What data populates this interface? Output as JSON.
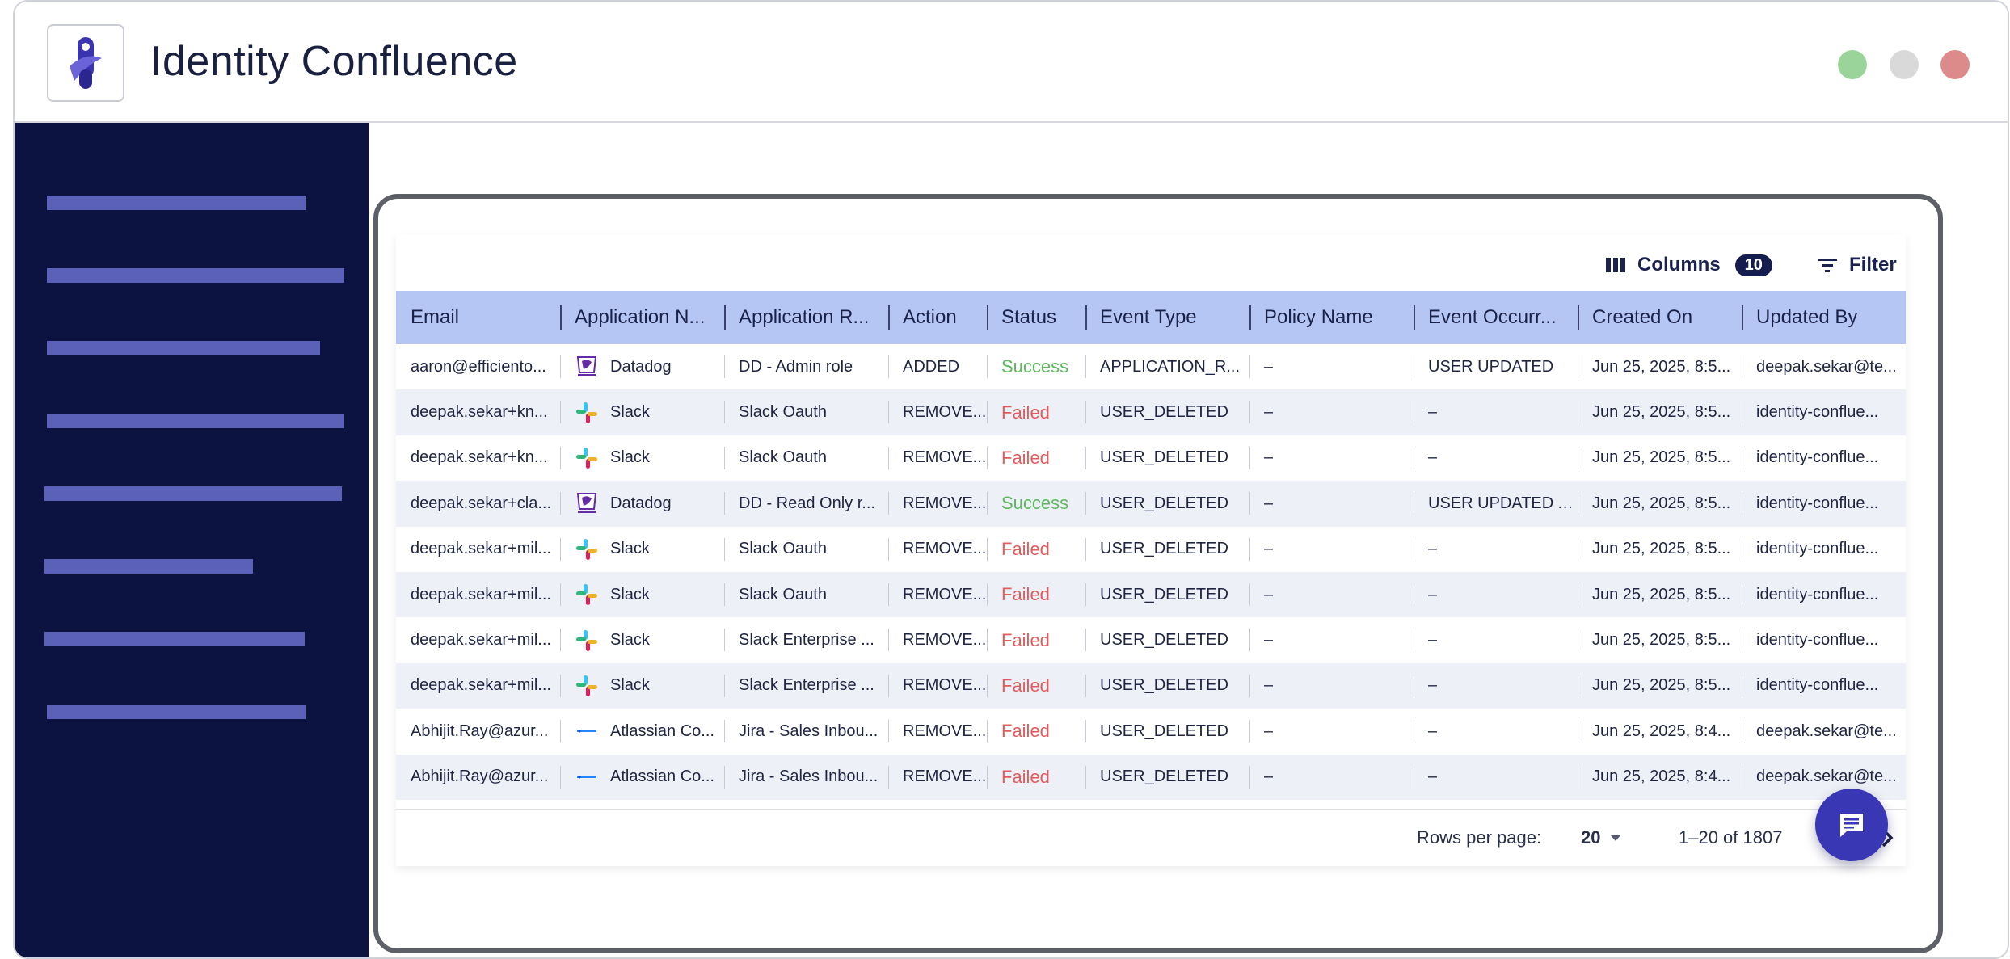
{
  "app": {
    "title": "Identity Confluence"
  },
  "window_controls": [
    "maximize",
    "minimize",
    "close"
  ],
  "colors": {
    "sidebar_bg": "#0d1340",
    "nav_placeholder": "#5b60b8",
    "header_row": "#b5c6f5",
    "success": "#5cb85c",
    "failed": "#e25c5c",
    "fab": "#3a37b5"
  },
  "toolbar": {
    "columns_label": "Columns",
    "columns_count": "10",
    "filter_label": "Filter"
  },
  "table": {
    "columns": [
      "Email",
      "Application N...",
      "Application R...",
      "Action",
      "Status",
      "Event Type",
      "Policy Name",
      "Event Occurr...",
      "Created On",
      "Updated By"
    ],
    "rows": [
      {
        "email": "aaron@efficiento...",
        "app_icon": "datadog-icon",
        "app": "Datadog",
        "role": "DD - Admin role",
        "action": "ADDED",
        "status": "Success",
        "event_type": "APPLICATION_R...",
        "policy": "–",
        "occurrence": "USER UPDATED",
        "created": "Jun 25, 2025, 8:5...",
        "updated_by": "deepak.sekar@te..."
      },
      {
        "email": "deepak.sekar+kn...",
        "app_icon": "slack-icon",
        "app": "Slack",
        "role": "Slack Oauth",
        "action": "REMOVE...",
        "status": "Failed",
        "event_type": "USER_DELETED",
        "policy": "–",
        "occurrence": "–",
        "created": "Jun 25, 2025, 8:5...",
        "updated_by": "identity-conflue..."
      },
      {
        "email": "deepak.sekar+kn...",
        "app_icon": "slack-icon",
        "app": "Slack",
        "role": "Slack Oauth",
        "action": "REMOVE...",
        "status": "Failed",
        "event_type": "USER_DELETED",
        "policy": "–",
        "occurrence": "–",
        "created": "Jun 25, 2025, 8:5...",
        "updated_by": "identity-conflue..."
      },
      {
        "email": "deepak.sekar+cla...",
        "app_icon": "datadog-icon",
        "app": "Datadog",
        "role": "DD - Read Only r...",
        "action": "REMOVE...",
        "status": "Success",
        "event_type": "USER_DELETED",
        "policy": "–",
        "occurrence": "USER UPDATED A...",
        "created": "Jun 25, 2025, 8:5...",
        "updated_by": "identity-conflue..."
      },
      {
        "email": "deepak.sekar+mil...",
        "app_icon": "slack-icon",
        "app": "Slack",
        "role": "Slack Oauth",
        "action": "REMOVE...",
        "status": "Failed",
        "event_type": "USER_DELETED",
        "policy": "–",
        "occurrence": "–",
        "created": "Jun 25, 2025, 8:5...",
        "updated_by": "identity-conflue..."
      },
      {
        "email": "deepak.sekar+mil...",
        "app_icon": "slack-icon",
        "app": "Slack",
        "role": "Slack Oauth",
        "action": "REMOVE...",
        "status": "Failed",
        "event_type": "USER_DELETED",
        "policy": "–",
        "occurrence": "–",
        "created": "Jun 25, 2025, 8:5...",
        "updated_by": "identity-conflue..."
      },
      {
        "email": "deepak.sekar+mil...",
        "app_icon": "slack-icon",
        "app": "Slack",
        "role": "Slack Enterprise ...",
        "action": "REMOVE...",
        "status": "Failed",
        "event_type": "USER_DELETED",
        "policy": "–",
        "occurrence": "–",
        "created": "Jun 25, 2025, 8:5...",
        "updated_by": "identity-conflue..."
      },
      {
        "email": "deepak.sekar+mil...",
        "app_icon": "slack-icon",
        "app": "Slack",
        "role": "Slack Enterprise ...",
        "action": "REMOVE...",
        "status": "Failed",
        "event_type": "USER_DELETED",
        "policy": "–",
        "occurrence": "–",
        "created": "Jun 25, 2025, 8:5...",
        "updated_by": "identity-conflue..."
      },
      {
        "email": "Abhijit.Ray@azur...",
        "app_icon": "atlassian-icon",
        "app": "Atlassian Co...",
        "role": "Jira - Sales Inbou...",
        "action": "REMOVE...",
        "status": "Failed",
        "event_type": "USER_DELETED",
        "policy": "–",
        "occurrence": "–",
        "created": "Jun 25, 2025, 8:4...",
        "updated_by": "deepak.sekar@te..."
      },
      {
        "email": "Abhijit.Ray@azur...",
        "app_icon": "atlassian-icon",
        "app": "Atlassian Co...",
        "role": "Jira - Sales Inbou...",
        "action": "REMOVE...",
        "status": "Failed",
        "event_type": "USER_DELETED",
        "policy": "–",
        "occurrence": "–",
        "created": "Jun 25, 2025, 8:4...",
        "updated_by": "deepak.sekar@te..."
      }
    ]
  },
  "pagination": {
    "rows_per_page_label": "Rows per page:",
    "rows_per_page_value": "20",
    "range": "1–20 of 1807"
  },
  "icons": {
    "logo": "identity-confluence-logo",
    "columns": "columns-icon",
    "filter": "filter-icon",
    "next": "chevron-right-icon",
    "dropdown": "caret-down-icon",
    "chat": "chat-icon"
  }
}
